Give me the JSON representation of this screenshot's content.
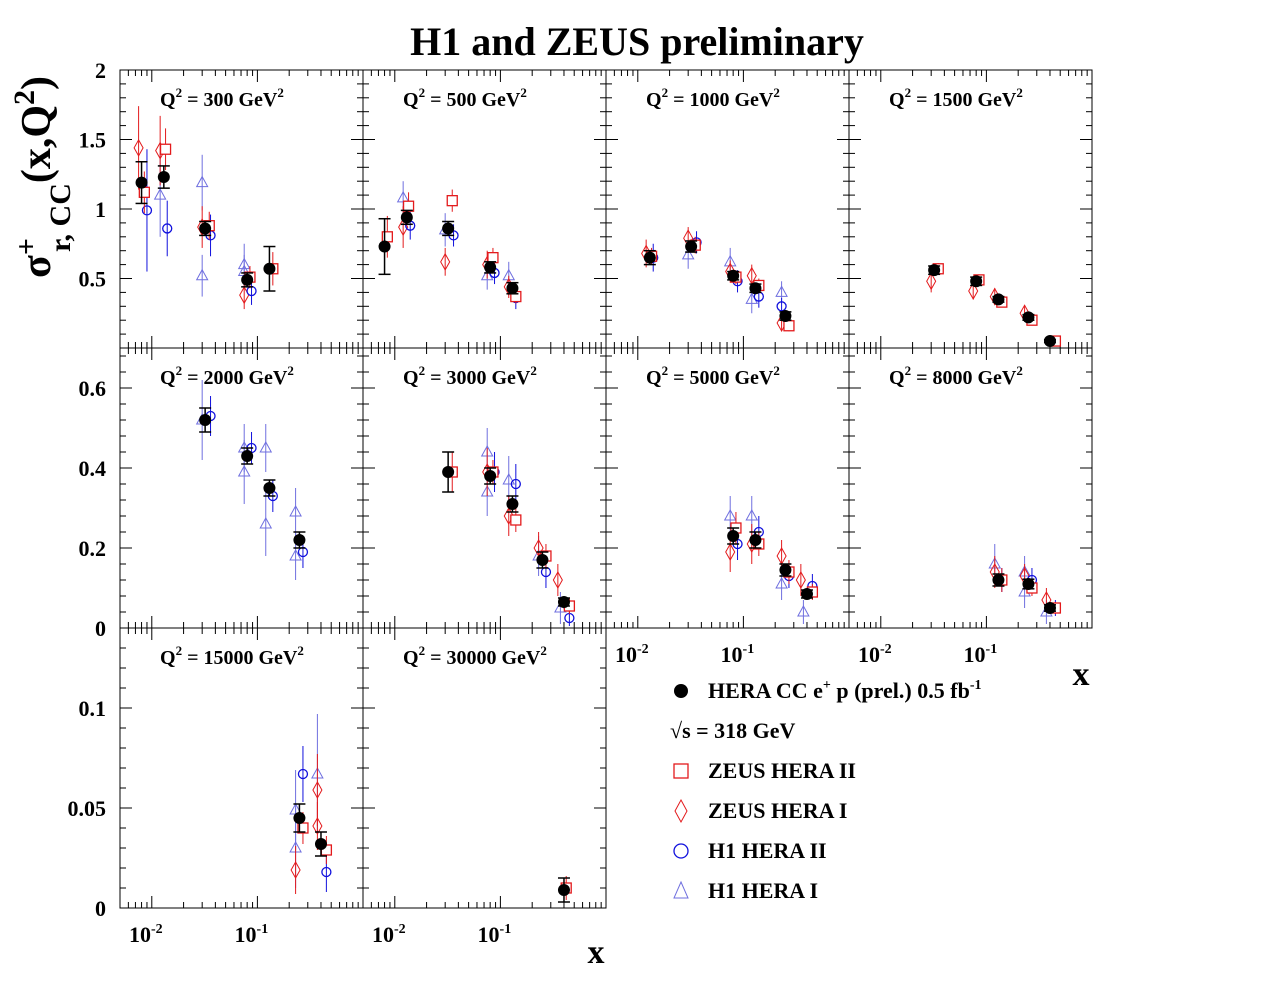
{
  "title": "H1 and ZEUS preliminary",
  "ylabel": {
    "sigma": "σ",
    "sup": "+",
    "sub": "r, CC",
    "rest": "(x,Q",
    "exp": "2",
    "close": ")"
  },
  "xlabel": "x",
  "colors": {
    "hera": "#000000",
    "zeus2": "#e31a1c",
    "zeus1": "#e31a1c",
    "h1_2": "#1010dd",
    "h1_1": "#6f6fdf"
  },
  "legend": [
    {
      "key": "hera",
      "marker": "filled-circle",
      "text": "HERA CC e",
      "sup": "+",
      "text2": " p (prel.) 0.5 fb",
      "sup2": "-1"
    },
    {
      "key": "sqrt",
      "marker": "none",
      "text": "√s = 318 GeV"
    },
    {
      "key": "zeus2",
      "marker": "open-square",
      "text": "ZEUS HERA II"
    },
    {
      "key": "zeus1",
      "marker": "open-diamond",
      "text": "ZEUS HERA I"
    },
    {
      "key": "h1_2",
      "marker": "open-circle",
      "text": "H1 HERA II"
    },
    {
      "key": "h1_1",
      "marker": "open-triangle",
      "text": "H1 HERA I"
    }
  ],
  "chart_data": [
    {
      "type": "scatter",
      "panel": "Q2=300",
      "label": "Q",
      "label_exp": "2",
      "label_rest": " = 300 GeV",
      "label_unit_exp": "2",
      "xscale": "log",
      "xlim": [
        0.005,
        1
      ],
      "ylim": [
        0,
        2
      ],
      "yticks": [
        {
          "v": 0.5,
          "t": "0.5"
        },
        {
          "v": 1,
          "t": "1"
        },
        {
          "v": 1.5,
          "t": "1.5"
        },
        {
          "v": 2,
          "t": "2"
        }
      ],
      "series": {
        "hera": [
          [
            0.008,
            1.19,
            0.15
          ],
          [
            0.013,
            1.23,
            0.08
          ],
          [
            0.032,
            0.86,
            0.05
          ],
          [
            0.08,
            0.49,
            0.05
          ],
          [
            0.13,
            0.57,
            0.16
          ]
        ],
        "zeus2": [
          [
            0.0085,
            1.12,
            0.15
          ],
          [
            0.0135,
            1.43,
            0.15
          ],
          [
            0.035,
            0.88,
            0.1
          ],
          [
            0.085,
            0.51,
            0.08
          ],
          [
            0.14,
            0.57,
            0.12
          ]
        ],
        "zeus1": [
          [
            0.0075,
            1.44,
            0.3
          ],
          [
            0.012,
            1.42,
            0.25
          ],
          [
            0.03,
            0.87,
            0.15
          ],
          [
            0.075,
            0.38,
            0.1
          ]
        ],
        "h1_2": [
          [
            0.009,
            0.99,
            0.44
          ],
          [
            0.014,
            0.86,
            0.2
          ],
          [
            0.036,
            0.81,
            0.15
          ],
          [
            0.088,
            0.41,
            0.1
          ]
        ],
        "h1_1": [
          [
            0.012,
            1.1,
            0.3
          ],
          [
            0.03,
            1.19,
            0.2
          ],
          [
            0.03,
            0.52,
            0.15
          ],
          [
            0.075,
            0.6,
            0.15
          ],
          [
            0.075,
            0.55,
            0.12
          ]
        ]
      }
    },
    {
      "type": "scatter",
      "panel": "Q2=500",
      "label": "Q",
      "label_exp": "2",
      "label_rest": " = 500 GeV",
      "label_unit_exp": "2",
      "xscale": "log",
      "xlim": [
        0.005,
        1
      ],
      "ylim": [
        0,
        2
      ],
      "series": {
        "hera": [
          [
            0.008,
            0.73,
            0.2
          ],
          [
            0.013,
            0.94,
            0.05
          ],
          [
            0.032,
            0.86,
            0.05
          ],
          [
            0.08,
            0.58,
            0.04
          ],
          [
            0.13,
            0.43,
            0.04
          ]
        ],
        "zeus2": [
          [
            0.0085,
            0.8,
            0.15
          ],
          [
            0.0135,
            1.02,
            0.1
          ],
          [
            0.035,
            1.06,
            0.08
          ],
          [
            0.085,
            0.65,
            0.07
          ],
          [
            0.14,
            0.37,
            0.05
          ]
        ],
        "zeus1": [
          [
            0.012,
            0.87,
            0.15
          ],
          [
            0.03,
            0.62,
            0.1
          ],
          [
            0.075,
            0.6,
            0.1
          ],
          [
            0.12,
            0.44,
            0.08
          ]
        ],
        "h1_2": [
          [
            0.014,
            0.88,
            0.1
          ],
          [
            0.036,
            0.81,
            0.08
          ],
          [
            0.088,
            0.54,
            0.08
          ],
          [
            0.14,
            0.36,
            0.08
          ]
        ],
        "h1_1": [
          [
            0.012,
            1.08,
            0.12
          ],
          [
            0.03,
            0.85,
            0.12
          ],
          [
            0.075,
            0.52,
            0.1
          ],
          [
            0.12,
            0.52,
            0.1
          ]
        ]
      }
    },
    {
      "type": "scatter",
      "panel": "Q2=1000",
      "label": "Q",
      "label_exp": "2",
      "label_rest": " = 1000 GeV",
      "label_unit_exp": "2",
      "xscale": "log",
      "xlim": [
        0.005,
        1
      ],
      "ylim": [
        0,
        2
      ],
      "series": {
        "hera": [
          [
            0.013,
            0.65,
            0.05
          ],
          [
            0.032,
            0.73,
            0.04
          ],
          [
            0.08,
            0.52,
            0.03
          ],
          [
            0.13,
            0.43,
            0.03
          ],
          [
            0.25,
            0.23,
            0.03
          ]
        ],
        "zeus2": [
          [
            0.0135,
            0.66,
            0.06
          ],
          [
            0.035,
            0.74,
            0.06
          ],
          [
            0.085,
            0.51,
            0.05
          ],
          [
            0.14,
            0.45,
            0.05
          ],
          [
            0.27,
            0.16,
            0.04
          ]
        ],
        "zeus1": [
          [
            0.012,
            0.68,
            0.1
          ],
          [
            0.03,
            0.79,
            0.08
          ],
          [
            0.075,
            0.55,
            0.08
          ],
          [
            0.12,
            0.52,
            0.08
          ],
          [
            0.23,
            0.18,
            0.06
          ]
        ],
        "h1_2": [
          [
            0.014,
            0.65,
            0.1
          ],
          [
            0.036,
            0.76,
            0.08
          ],
          [
            0.088,
            0.48,
            0.08
          ],
          [
            0.14,
            0.37,
            0.08
          ],
          [
            0.23,
            0.3,
            0.06
          ]
        ],
        "h1_1": [
          [
            0.03,
            0.67,
            0.1
          ],
          [
            0.075,
            0.62,
            0.1
          ],
          [
            0.12,
            0.35,
            0.1
          ],
          [
            0.23,
            0.4,
            0.08
          ]
        ]
      }
    },
    {
      "type": "scatter",
      "panel": "Q2=1500",
      "label": "Q",
      "label_exp": "2",
      "label_rest": " = 1500 GeV",
      "label_unit_exp": "2",
      "xscale": "log",
      "xlim": [
        0.005,
        1
      ],
      "ylim": [
        0,
        2
      ],
      "series": {
        "hera": [
          [
            0.032,
            0.56,
            0.03
          ],
          [
            0.08,
            0.48,
            0.03
          ],
          [
            0.13,
            0.35,
            0.02
          ],
          [
            0.25,
            0.22,
            0.02
          ],
          [
            0.4,
            0.05,
            0.01
          ]
        ],
        "zeus2": [
          [
            0.035,
            0.57,
            0.04
          ],
          [
            0.085,
            0.49,
            0.04
          ],
          [
            0.14,
            0.33,
            0.03
          ],
          [
            0.27,
            0.2,
            0.03
          ],
          [
            0.45,
            0.05,
            0.01
          ]
        ],
        "zeus1": [
          [
            0.03,
            0.48,
            0.08
          ],
          [
            0.075,
            0.41,
            0.06
          ],
          [
            0.12,
            0.37,
            0.06
          ],
          [
            0.23,
            0.25,
            0.05
          ]
        ]
      }
    },
    {
      "type": "scatter",
      "panel": "Q2=2000",
      "label": "Q",
      "label_exp": "2",
      "label_rest": " = 2000 GeV",
      "label_unit_exp": "2",
      "xscale": "log",
      "xlim": [
        0.005,
        1
      ],
      "ylim": [
        0,
        0.7
      ],
      "yticks": [
        {
          "v": 0,
          "t": "0"
        },
        {
          "v": 0.2,
          "t": "0.2"
        },
        {
          "v": 0.4,
          "t": "0.4"
        },
        {
          "v": 0.6,
          "t": "0.6"
        }
      ],
      "series": {
        "hera": [
          [
            0.032,
            0.52,
            0.03
          ],
          [
            0.08,
            0.43,
            0.02
          ],
          [
            0.13,
            0.35,
            0.02
          ],
          [
            0.25,
            0.22,
            0.02
          ]
        ],
        "h1_2": [
          [
            0.036,
            0.53,
            0.05
          ],
          [
            0.088,
            0.45,
            0.04
          ],
          [
            0.14,
            0.33,
            0.04
          ],
          [
            0.27,
            0.19,
            0.04
          ]
        ],
        "h1_1": [
          [
            0.03,
            0.52,
            0.1
          ],
          [
            0.075,
            0.39,
            0.08
          ],
          [
            0.075,
            0.45,
            0.06
          ],
          [
            0.12,
            0.26,
            0.08
          ],
          [
            0.12,
            0.45,
            0.06
          ],
          [
            0.23,
            0.18,
            0.06
          ],
          [
            0.23,
            0.29,
            0.06
          ]
        ]
      }
    },
    {
      "type": "scatter",
      "panel": "Q2=3000",
      "label": "Q",
      "label_exp": "2",
      "label_rest": " = 3000 GeV",
      "label_unit_exp": "2",
      "xscale": "log",
      "xlim": [
        0.005,
        1
      ],
      "ylim": [
        0,
        0.7
      ],
      "series": {
        "hera": [
          [
            0.032,
            0.39,
            0.05
          ],
          [
            0.08,
            0.38,
            0.02
          ],
          [
            0.13,
            0.31,
            0.02
          ],
          [
            0.25,
            0.17,
            0.02
          ],
          [
            0.4,
            0.065,
            0.01
          ]
        ],
        "zeus2": [
          [
            0.035,
            0.39,
            0.05
          ],
          [
            0.085,
            0.39,
            0.03
          ],
          [
            0.14,
            0.27,
            0.03
          ],
          [
            0.27,
            0.18,
            0.03
          ],
          [
            0.45,
            0.055,
            0.02
          ]
        ],
        "zeus1": [
          [
            0.075,
            0.39,
            0.06
          ],
          [
            0.12,
            0.28,
            0.05
          ],
          [
            0.23,
            0.2,
            0.04
          ],
          [
            0.35,
            0.12,
            0.04
          ]
        ],
        "h1_2": [
          [
            0.088,
            0.39,
            0.05
          ],
          [
            0.14,
            0.36,
            0.05
          ],
          [
            0.27,
            0.14,
            0.04
          ],
          [
            0.45,
            0.025,
            0.02
          ]
        ],
        "h1_1": [
          [
            0.075,
            0.44,
            0.06
          ],
          [
            0.075,
            0.34,
            0.06
          ],
          [
            0.12,
            0.37,
            0.06
          ],
          [
            0.23,
            0.18,
            0.05
          ],
          [
            0.37,
            0.05,
            0.04
          ]
        ]
      }
    },
    {
      "type": "scatter",
      "panel": "Q2=5000",
      "label": "Q",
      "label_exp": "2",
      "label_rest": " = 5000 GeV",
      "label_unit_exp": "2",
      "xscale": "log",
      "xlim": [
        0.005,
        1
      ],
      "ylim": [
        0,
        0.7
      ],
      "series": {
        "hera": [
          [
            0.08,
            0.23,
            0.02
          ],
          [
            0.13,
            0.22,
            0.02
          ],
          [
            0.25,
            0.145,
            0.015
          ],
          [
            0.4,
            0.085,
            0.01
          ]
        ],
        "zeus2": [
          [
            0.085,
            0.25,
            0.04
          ],
          [
            0.14,
            0.21,
            0.03
          ],
          [
            0.27,
            0.14,
            0.03
          ],
          [
            0.45,
            0.09,
            0.02
          ]
        ],
        "zeus1": [
          [
            0.075,
            0.19,
            0.05
          ],
          [
            0.12,
            0.21,
            0.05
          ],
          [
            0.23,
            0.18,
            0.04
          ],
          [
            0.35,
            0.12,
            0.04
          ]
        ],
        "h1_2": [
          [
            0.088,
            0.21,
            0.04
          ],
          [
            0.14,
            0.24,
            0.04
          ],
          [
            0.27,
            0.13,
            0.03
          ],
          [
            0.45,
            0.105,
            0.03
          ]
        ],
        "h1_1": [
          [
            0.075,
            0.28,
            0.05
          ],
          [
            0.12,
            0.28,
            0.05
          ],
          [
            0.23,
            0.11,
            0.04
          ],
          [
            0.37,
            0.04,
            0.03
          ]
        ]
      }
    },
    {
      "type": "scatter",
      "panel": "Q2=8000",
      "label": "Q",
      "label_exp": "2",
      "label_rest": " = 8000 GeV",
      "label_unit_exp": "2",
      "xscale": "log",
      "xlim": [
        0.005,
        1
      ],
      "ylim": [
        0,
        0.7
      ],
      "series": {
        "hera": [
          [
            0.13,
            0.12,
            0.015
          ],
          [
            0.25,
            0.11,
            0.012
          ],
          [
            0.4,
            0.05,
            0.008
          ]
        ],
        "zeus2": [
          [
            0.14,
            0.12,
            0.03
          ],
          [
            0.27,
            0.1,
            0.02
          ],
          [
            0.45,
            0.05,
            0.015
          ]
        ],
        "zeus1": [
          [
            0.12,
            0.14,
            0.04
          ],
          [
            0.23,
            0.13,
            0.03
          ],
          [
            0.37,
            0.07,
            0.03
          ]
        ],
        "h1_2": [
          [
            0.14,
            0.12,
            0.03
          ],
          [
            0.27,
            0.12,
            0.03
          ],
          [
            0.45,
            0.05,
            0.02
          ]
        ],
        "h1_1": [
          [
            0.12,
            0.16,
            0.05
          ],
          [
            0.23,
            0.09,
            0.04
          ],
          [
            0.23,
            0.14,
            0.04
          ],
          [
            0.37,
            0.04,
            0.03
          ]
        ]
      }
    },
    {
      "type": "scatter",
      "panel": "Q2=15000",
      "label": "Q",
      "label_exp": "2",
      "label_rest": " = 15000 GeV",
      "label_unit_exp": "2",
      "xscale": "log",
      "xlim": [
        0.005,
        1
      ],
      "ylim": [
        0,
        0.14
      ],
      "yticks": [
        {
          "v": 0,
          "t": "0"
        },
        {
          "v": 0.05,
          "t": "0.05"
        },
        {
          "v": 0.1,
          "t": "0.1"
        }
      ],
      "series": {
        "hera": [
          [
            0.25,
            0.045,
            0.007
          ],
          [
            0.4,
            0.032,
            0.006
          ]
        ],
        "zeus2": [
          [
            0.27,
            0.04,
            0.008
          ],
          [
            0.45,
            0.029,
            0.007
          ]
        ],
        "zeus1": [
          [
            0.23,
            0.019,
            0.012
          ],
          [
            0.37,
            0.059,
            0.018
          ],
          [
            0.37,
            0.041,
            0.012
          ]
        ],
        "h1_2": [
          [
            0.27,
            0.067,
            0.014
          ],
          [
            0.45,
            0.018,
            0.01
          ]
        ],
        "h1_1": [
          [
            0.23,
            0.03,
            0.02
          ],
          [
            0.23,
            0.049,
            0.02
          ],
          [
            0.37,
            0.067,
            0.03
          ]
        ]
      }
    },
    {
      "type": "scatter",
      "panel": "Q2=30000",
      "label": "Q",
      "label_exp": "2",
      "label_rest": " = 30000 GeV",
      "label_unit_exp": "2",
      "xscale": "log",
      "xlim": [
        0.005,
        1
      ],
      "ylim": [
        0,
        0.14
      ],
      "series": {
        "hera": [
          [
            0.4,
            0.009,
            0.006
          ]
        ],
        "zeus2": [
          [
            0.42,
            0.01,
            0.006
          ]
        ]
      }
    }
  ],
  "xticks": [
    {
      "base": "10",
      "exp": "-2",
      "v": 0.01
    },
    {
      "base": "10",
      "exp": "-1",
      "v": 0.1
    }
  ]
}
